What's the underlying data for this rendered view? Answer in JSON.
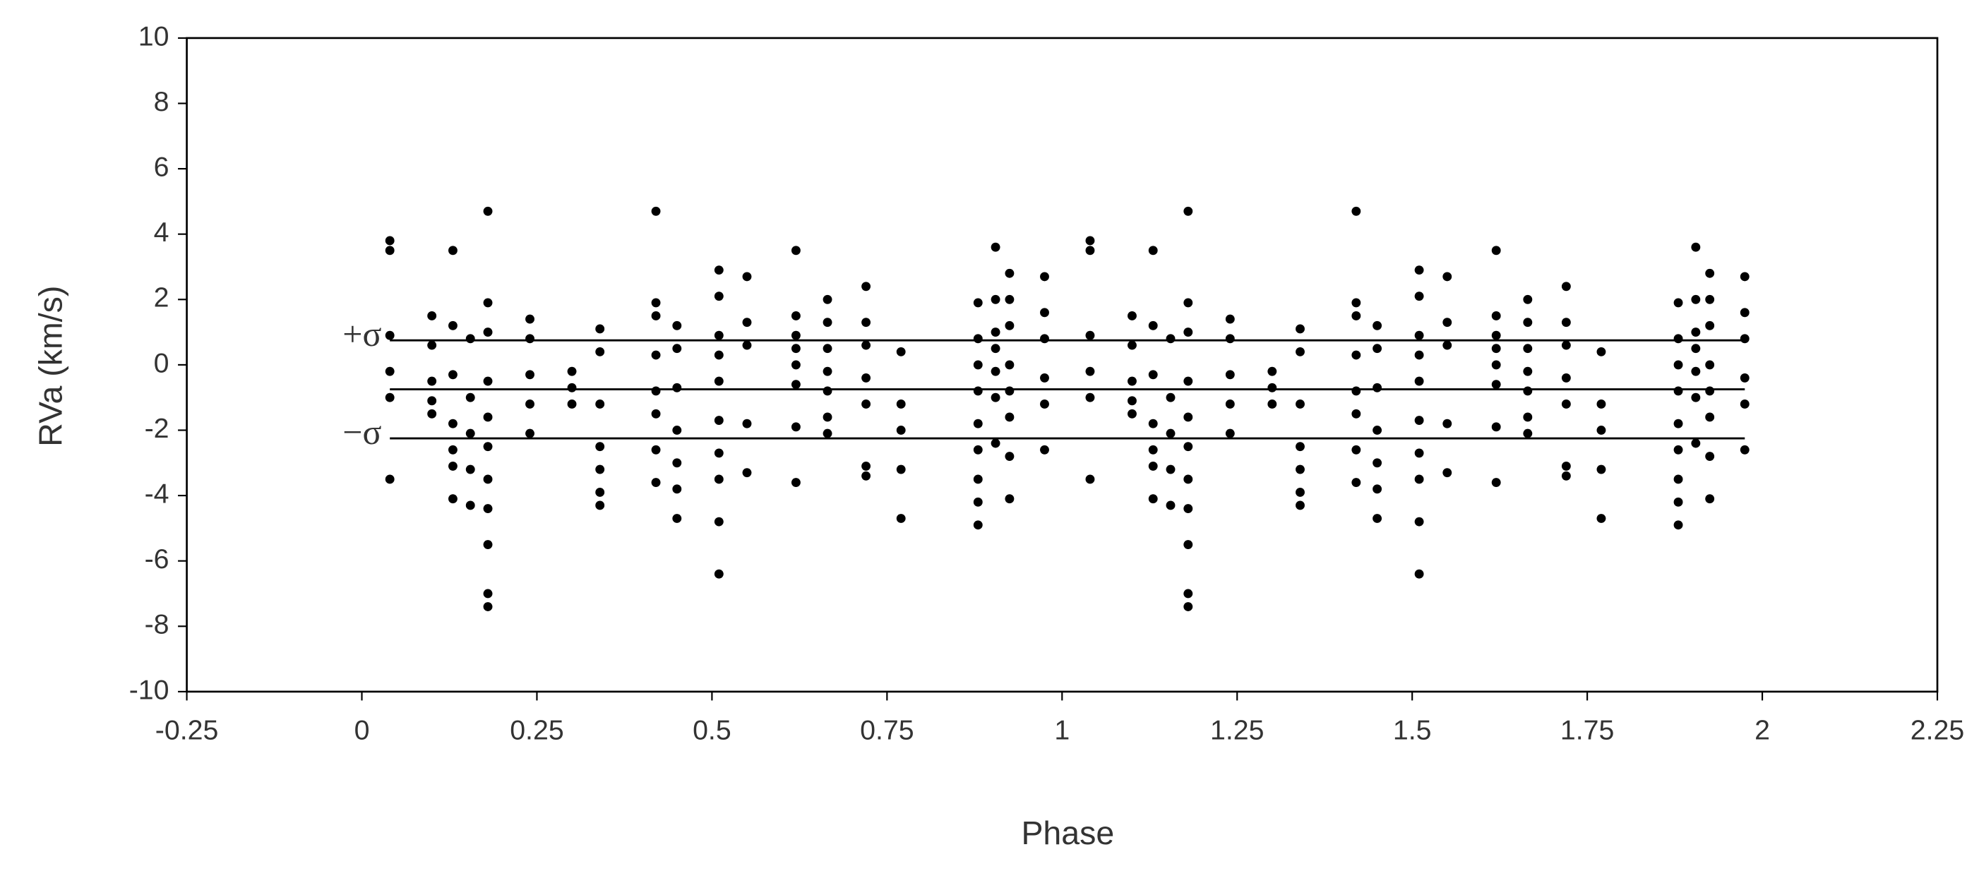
{
  "chart_data": {
    "type": "scatter",
    "x_label": "Phase",
    "y_label": "RVa (km/s)",
    "color": "#000000",
    "xlim": [
      -0.25,
      2.25
    ],
    "xticks": [
      -0.25,
      0,
      0.25,
      0.5,
      0.75,
      1,
      1.25,
      1.5,
      1.75,
      2,
      2.25
    ],
    "ylim": [
      -10,
      10
    ],
    "yticks": [
      -10,
      -8,
      -6,
      -4,
      -2,
      0,
      2,
      4,
      6,
      8,
      10
    ],
    "reference_lines": [
      {
        "value": 0.75,
        "label": "+σ"
      },
      {
        "value": -0.75
      },
      {
        "value": -2.25,
        "label": "−σ"
      }
    ],
    "x": [
      0.04,
      0.1,
      0.13,
      0.155,
      0.18,
      0.24,
      0.3,
      0.34,
      0.42,
      0.45,
      0.51,
      0.55,
      0.62,
      0.665,
      0.72,
      0.77,
      0.88,
      0.905,
      0.925,
      0.975,
      1.04,
      1.1,
      1.13,
      1.155,
      1.18,
      1.24,
      1.3,
      1.34,
      1.42,
      1.45,
      1.51,
      1.55,
      1.62,
      1.665,
      1.72,
      1.77,
      1.88,
      1.905,
      1.925,
      1.975
    ],
    "y": [
      [
        3.8,
        3.5,
        0.9,
        -0.2,
        -1,
        -3.5
      ],
      [
        1.5,
        0.6,
        -0.5,
        -1.1,
        -1.5
      ],
      [
        3.5,
        1.2,
        -0.3,
        -1.8,
        -2.6,
        -3.1,
        -4.1
      ],
      [
        0.8,
        -1,
        -2.1,
        -3.2,
        -4.3
      ],
      [
        4.7,
        1.9,
        1,
        -0.5,
        -1.6,
        -2.5,
        -3.5,
        -4.4,
        -5.5,
        -7,
        -7.4
      ],
      [
        1.4,
        0.8,
        -0.3,
        -1.2,
        -2.1
      ],
      [
        -0.2,
        -0.7,
        -1.2
      ],
      [
        1.1,
        0.4,
        -1.2,
        -2.5,
        -3.2,
        -3.9,
        -4.3
      ],
      [
        4.7,
        1.9,
        1.5,
        0.3,
        -0.8,
        -1.5,
        -2.6,
        -3.6
      ],
      [
        1.2,
        0.5,
        -0.7,
        -2,
        -3,
        -3.8,
        -4.7
      ],
      [
        2.9,
        2.1,
        0.9,
        0.3,
        -0.5,
        -1.7,
        -2.7,
        -3.5,
        -4.8,
        -6.4
      ],
      [
        2.7,
        1.3,
        0.6,
        -1.8,
        -3.3
      ],
      [
        3.5,
        1.5,
        0.9,
        0.5,
        0,
        -0.6,
        -1.9,
        -3.6
      ],
      [
        2,
        1.3,
        0.5,
        -0.2,
        -0.8,
        -1.6,
        -2.1
      ],
      [
        2.4,
        1.3,
        0.6,
        -0.4,
        -1.2,
        -3.1,
        -3.4
      ],
      [
        0.4,
        -1.2,
        -2,
        -3.2,
        -4.7
      ],
      [
        1.9,
        0.8,
        0,
        -0.8,
        -1.8,
        -2.6,
        -3.5,
        -4.2,
        -4.9
      ],
      [
        3.6,
        2,
        1,
        0.5,
        -0.2,
        -1,
        -2.4
      ],
      [
        2.8,
        2,
        1.2,
        0,
        -0.8,
        -1.6,
        -2.8,
        -4.1
      ],
      [
        2.7,
        1.6,
        0.8,
        -0.4,
        -1.2,
        -2.6
      ],
      [
        3.8,
        3.5,
        0.9,
        -0.2,
        -1,
        -3.5
      ],
      [
        1.5,
        0.6,
        -0.5,
        -1.1,
        -1.5
      ],
      [
        3.5,
        1.2,
        -0.3,
        -1.8,
        -2.6,
        -3.1,
        -4.1
      ],
      [
        0.8,
        -1,
        -2.1,
        -3.2,
        -4.3
      ],
      [
        4.7,
        1.9,
        1,
        -0.5,
        -1.6,
        -2.5,
        -3.5,
        -4.4,
        -5.5,
        -7,
        -7.4
      ],
      [
        1.4,
        0.8,
        -0.3,
        -1.2,
        -2.1
      ],
      [
        -0.2,
        -0.7,
        -1.2
      ],
      [
        1.1,
        0.4,
        -1.2,
        -2.5,
        -3.2,
        -3.9,
        -4.3
      ],
      [
        4.7,
        1.9,
        1.5,
        0.3,
        -0.8,
        -1.5,
        -2.6,
        -3.6
      ],
      [
        1.2,
        0.5,
        -0.7,
        -2,
        -3,
        -3.8,
        -4.7
      ],
      [
        2.9,
        2.1,
        0.9,
        0.3,
        -0.5,
        -1.7,
        -2.7,
        -3.5,
        -4.8,
        -6.4
      ],
      [
        2.7,
        1.3,
        0.6,
        -1.8,
        -3.3
      ],
      [
        3.5,
        1.5,
        0.9,
        0.5,
        0,
        -0.6,
        -1.9,
        -3.6
      ],
      [
        2,
        1.3,
        0.5,
        -0.2,
        -0.8,
        -1.6,
        -2.1
      ],
      [
        2.4,
        1.3,
        0.6,
        -0.4,
        -1.2,
        -3.1,
        -3.4
      ],
      [
        0.4,
        -1.2,
        -2,
        -3.2,
        -4.7
      ],
      [
        1.9,
        0.8,
        0,
        -0.8,
        -1.8,
        -2.6,
        -3.5,
        -4.2,
        -4.9
      ],
      [
        3.6,
        2,
        1,
        0.5,
        -0.2,
        -1,
        -2.4
      ],
      [
        2.8,
        2,
        1.2,
        0,
        -0.8,
        -1.6,
        -2.8,
        -4.1
      ],
      [
        2.7,
        1.6,
        0.8,
        -0.4,
        -1.2,
        -2.6
      ]
    ]
  }
}
